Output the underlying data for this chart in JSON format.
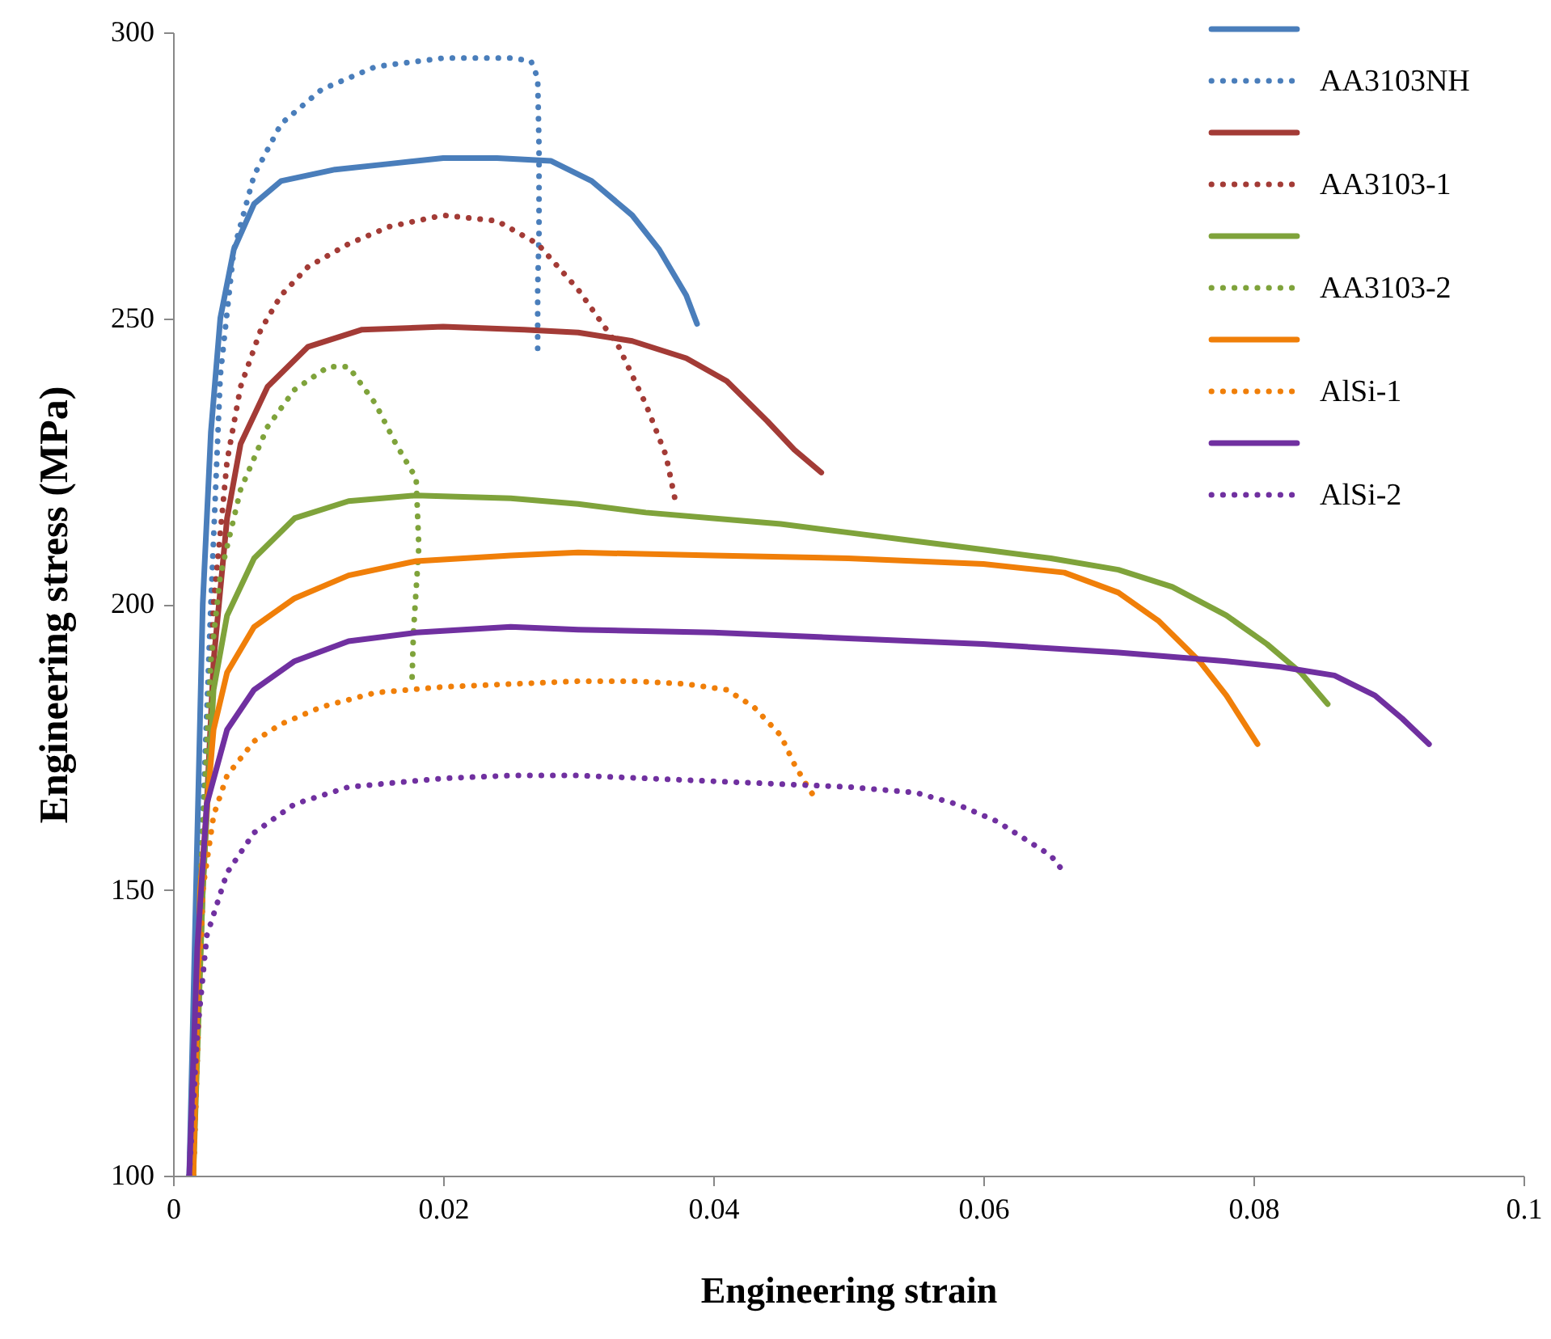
{
  "chart_data": {
    "type": "line",
    "xlabel": "Engineering strain",
    "ylabel": "Engineering stress (MPa)",
    "xlim": [
      0,
      0.1
    ],
    "ylim": [
      100,
      300
    ],
    "xticks": [
      0,
      0.02,
      0.04,
      0.06,
      0.08,
      0.1
    ],
    "yticks": [
      100,
      150,
      200,
      250,
      300
    ],
    "legend": "top right",
    "series": [
      {
        "color": "#4a7ebb",
        "line_style": "solid",
        "x": [
          0.0012,
          0.0017,
          0.0022,
          0.0028,
          0.0035,
          0.0045,
          0.006,
          0.008,
          0.012,
          0.016,
          0.02,
          0.024,
          0.028,
          0.031,
          0.034,
          0.036,
          0.038,
          0.0388
        ],
        "values": [
          100,
          150,
          200,
          230,
          250,
          262,
          270,
          274,
          276,
          277,
          278,
          278,
          277.5,
          274,
          268,
          262,
          254,
          249
        ]
      },
      {
        "name": "AA3103NH",
        "color": "#4a7ebb",
        "line_style": "dotted",
        "x": [
          0.0012,
          0.002,
          0.0028,
          0.0035,
          0.0045,
          0.006,
          0.008,
          0.011,
          0.015,
          0.02,
          0.025,
          0.0265,
          0.027,
          0.0271,
          0.0271,
          0.027,
          0.027
        ],
        "values": [
          100,
          150,
          200,
          240,
          262,
          275,
          284,
          290,
          294,
          295.5,
          295.5,
          295,
          292,
          280,
          265,
          255,
          244
        ]
      },
      {
        "color": "#a33b36",
        "line_style": "solid",
        "x": [
          0.0014,
          0.0022,
          0.003,
          0.004,
          0.005,
          0.007,
          0.01,
          0.014,
          0.02,
          0.026,
          0.03,
          0.034,
          0.038,
          0.041,
          0.044,
          0.046,
          0.048
        ],
        "values": [
          100,
          150,
          190,
          215,
          228,
          238,
          245,
          248,
          248.5,
          248,
          247.5,
          246,
          243,
          239,
          232,
          227,
          223
        ]
      },
      {
        "name": "AA3103-1",
        "color": "#a33b36",
        "line_style": "dotted",
        "x": [
          0.0015,
          0.0022,
          0.003,
          0.004,
          0.005,
          0.0065,
          0.008,
          0.01,
          0.013,
          0.016,
          0.02,
          0.024,
          0.027,
          0.03,
          0.033,
          0.035,
          0.0365,
          0.0372
        ],
        "values": [
          100,
          150,
          200,
          225,
          238,
          248,
          254,
          259,
          263,
          266,
          268,
          267,
          263,
          255,
          245,
          235,
          226,
          218
        ]
      },
      {
        "color": "#7fa33b",
        "line_style": "solid",
        "x": [
          0.0015,
          0.0022,
          0.003,
          0.004,
          0.006,
          0.009,
          0.013,
          0.018,
          0.025,
          0.03,
          0.035,
          0.04,
          0.045,
          0.05,
          0.055,
          0.06,
          0.065,
          0.07,
          0.074,
          0.078,
          0.081,
          0.0835,
          0.0855
        ],
        "values": [
          100,
          150,
          185,
          198,
          208,
          215,
          218,
          219,
          218.5,
          217.5,
          216,
          215,
          214,
          212.5,
          211,
          209.5,
          208,
          206,
          203,
          198,
          193,
          188,
          182.5
        ]
      },
      {
        "name": "AA3103-2",
        "color": "#7fa33b",
        "line_style": "dotted",
        "x": [
          0.0015,
          0.002,
          0.0028,
          0.0035,
          0.005,
          0.007,
          0.009,
          0.0115,
          0.013,
          0.015,
          0.0165,
          0.018,
          0.0182,
          0.0178,
          0.0177
        ],
        "values": [
          100,
          150,
          190,
          205,
          220,
          231,
          237.5,
          241.5,
          241.5,
          235,
          228,
          222,
          210,
          195,
          187
        ]
      },
      {
        "color": "#f07f09",
        "line_style": "solid",
        "x": [
          0.0015,
          0.002,
          0.003,
          0.004,
          0.006,
          0.009,
          0.013,
          0.018,
          0.025,
          0.03,
          0.04,
          0.05,
          0.06,
          0.066,
          0.07,
          0.073,
          0.076,
          0.078,
          0.0803
        ],
        "values": [
          100,
          150,
          178,
          188,
          196,
          201,
          205,
          207.5,
          208.5,
          209,
          208.5,
          208,
          207,
          205.5,
          202,
          197,
          190,
          184,
          175.5
        ]
      },
      {
        "name": "AlSi-1",
        "color": "#f07f09",
        "line_style": "dotted",
        "x": [
          0.0015,
          0.0022,
          0.003,
          0.004,
          0.006,
          0.008,
          0.011,
          0.015,
          0.02,
          0.025,
          0.03,
          0.034,
          0.038,
          0.041,
          0.043,
          0.045,
          0.046,
          0.047,
          0.0477
        ],
        "values": [
          100,
          150,
          163,
          170,
          176,
          179,
          182,
          184.5,
          185.5,
          186,
          186.5,
          186.5,
          186,
          185,
          182,
          177,
          172,
          168,
          165.5
        ]
      },
      {
        "color": "#7030a0",
        "line_style": "solid",
        "x": [
          0.0012,
          0.0018,
          0.0025,
          0.004,
          0.006,
          0.009,
          0.013,
          0.018,
          0.025,
          0.03,
          0.04,
          0.05,
          0.06,
          0.07,
          0.078,
          0.082,
          0.086,
          0.089,
          0.091,
          0.093
        ],
        "values": [
          100,
          140,
          165,
          178,
          185,
          190,
          193.5,
          195,
          196,
          195.5,
          195,
          194,
          193,
          191.5,
          190,
          189,
          187.5,
          184,
          180,
          175.5
        ]
      },
      {
        "name": "AlSi-2",
        "color": "#7030a0",
        "line_style": "dotted",
        "x": [
          0.0012,
          0.0018,
          0.0025,
          0.004,
          0.006,
          0.009,
          0.013,
          0.02,
          0.025,
          0.03,
          0.035,
          0.04,
          0.045,
          0.05,
          0.055,
          0.058,
          0.061,
          0.063,
          0.065,
          0.066
        ],
        "values": [
          100,
          125,
          142,
          153,
          160,
          165,
          168,
          169.5,
          170,
          170,
          169.5,
          169,
          168.5,
          168,
          167,
          165,
          162,
          159,
          156,
          153
        ]
      }
    ]
  }
}
